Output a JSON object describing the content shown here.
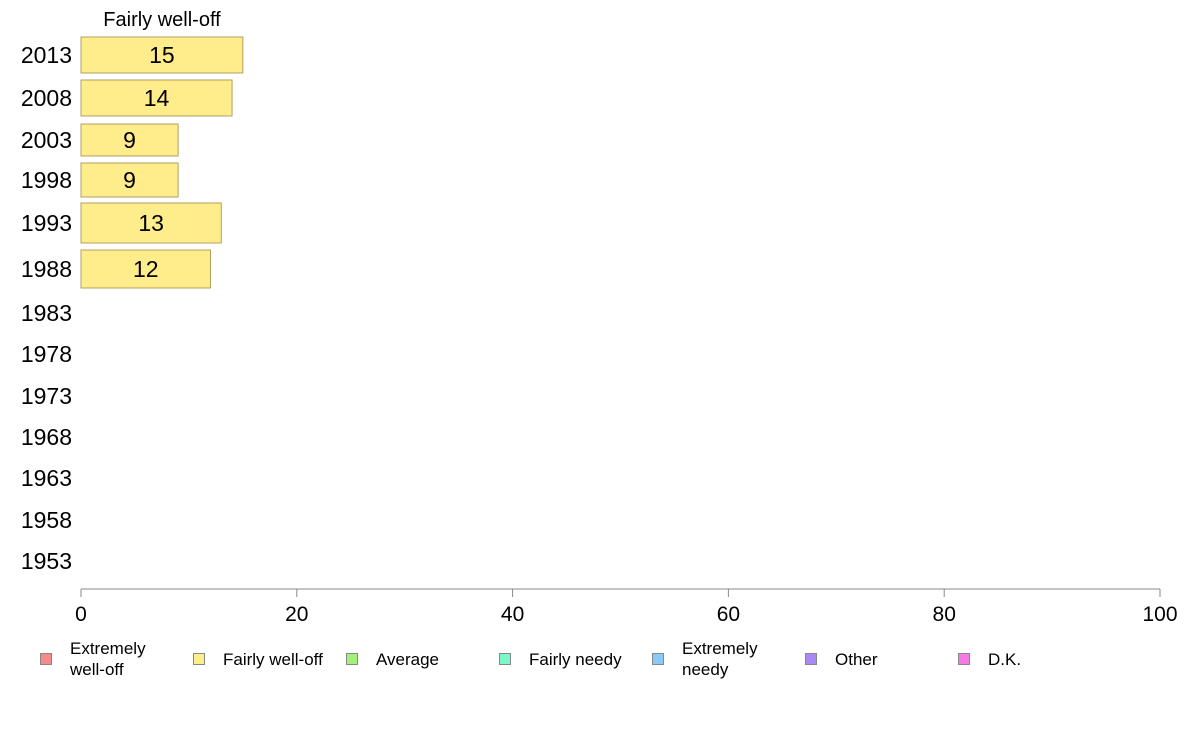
{
  "chart_data": {
    "type": "bar",
    "orientation": "horizontal",
    "series_title": "Fairly well-off",
    "categories": [
      "2013",
      "2008",
      "2003",
      "1998",
      "1993",
      "1988",
      "1983",
      "1978",
      "1973",
      "1968",
      "1963",
      "1958",
      "1953"
    ],
    "values": [
      15,
      14,
      9,
      9,
      13,
      12,
      null,
      null,
      null,
      null,
      null,
      null,
      null
    ],
    "bar_labels": [
      "15",
      "14",
      "9",
      "9",
      "13",
      "12",
      "",
      "",
      "",
      "",
      "",
      "",
      ""
    ],
    "xlim": [
      0,
      100
    ],
    "xticks": [
      "0",
      "20",
      "40",
      "60",
      "80",
      "100"
    ],
    "bar_color": "#ffec8b",
    "bar_edge": "#b0a060",
    "grid": false,
    "legend_position": "bottom",
    "legend": [
      {
        "label": "Extremely\nwell-off",
        "color": "#f58a8a"
      },
      {
        "label": "Fairly well-off",
        "color": "#ffec8b"
      },
      {
        "label": "Average",
        "color": "#a3f07a"
      },
      {
        "label": "Fairly needy",
        "color": "#7af7c8"
      },
      {
        "label": "Extremely\nneedy",
        "color": "#8ac8f5"
      },
      {
        "label": "Other",
        "color": "#a98af5"
      },
      {
        "label": "D.K.",
        "color": "#f57ae6"
      }
    ]
  }
}
